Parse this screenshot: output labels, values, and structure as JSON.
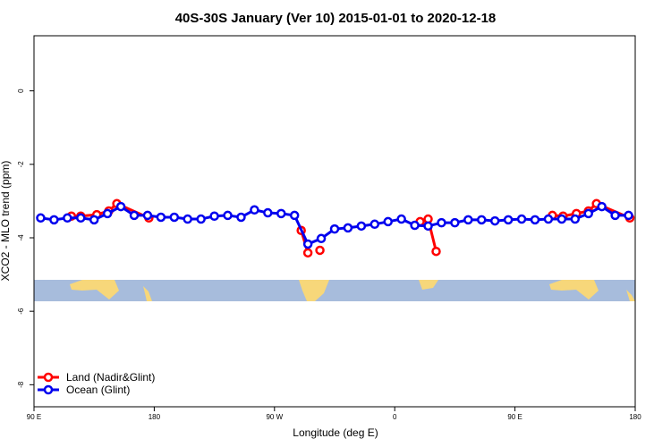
{
  "chart_data": {
    "type": "line",
    "title": "40S-30S January (Ver 10)   2015-01-01 to 2020-12-18",
    "xlabel": "Longitude (deg E)",
    "ylabel": "XCO2 - MLO trend (ppm)",
    "xlim": [
      90,
      540
    ],
    "ylim": [
      -8.6,
      1.5
    ],
    "xticks": [
      {
        "value": 90,
        "label": "90 E"
      },
      180,
      {
        "value": 270,
        "label": "90 W"
      },
      {
        "value": 360,
        "label": "0"
      },
      {
        "value": 450,
        "label": "90 E"
      },
      {
        "value": 540,
        "label": "180"
      }
    ],
    "yticks": [
      0,
      -2,
      -4,
      -6,
      -8
    ],
    "legend": "bottom-left",
    "series": [
      {
        "name": "Land (Nadir&Glint)",
        "color": "#ff0000",
        "x": [
          118,
          125,
          137,
          146,
          152,
          176,
          null,
          290,
          295,
          null,
          304,
          null,
          379,
          385,
          391,
          null,
          478,
          486,
          496,
          505,
          511,
          536
        ],
        "values": [
          -3.41,
          -3.41,
          -3.37,
          -3.27,
          -3.07,
          -3.46,
          null,
          -3.8,
          -4.41,
          null,
          -4.34,
          null,
          -3.56,
          -3.49,
          -4.37,
          null,
          -3.39,
          -3.41,
          -3.34,
          -3.27,
          -3.07,
          -3.46
        ]
      },
      {
        "name": "Ocean (Glint)",
        "color": "#0000ee",
        "x": [
          95,
          105,
          115,
          125,
          135,
          145,
          155,
          165,
          175,
          185,
          195,
          205,
          215,
          225,
          235,
          245,
          255,
          265,
          275,
          285,
          295,
          305,
          315,
          325,
          335,
          345,
          355,
          365,
          375,
          385,
          395,
          405,
          415,
          425,
          435,
          445,
          455,
          465,
          475,
          485,
          495,
          505,
          515,
          525,
          535
        ],
        "values": [
          -3.46,
          -3.51,
          -3.46,
          -3.46,
          -3.51,
          -3.34,
          -3.15,
          -3.39,
          -3.39,
          -3.44,
          -3.44,
          -3.49,
          -3.49,
          -3.41,
          -3.39,
          -3.44,
          -3.24,
          -3.32,
          -3.34,
          -3.39,
          -4.17,
          -4.02,
          -3.76,
          -3.73,
          -3.68,
          -3.63,
          -3.56,
          -3.49,
          -3.66,
          -3.68,
          -3.59,
          -3.59,
          -3.51,
          -3.51,
          -3.54,
          -3.51,
          -3.49,
          -3.51,
          -3.49,
          -3.49,
          -3.49,
          -3.34,
          -3.15,
          -3.39,
          -3.39
        ]
      }
    ]
  }
}
